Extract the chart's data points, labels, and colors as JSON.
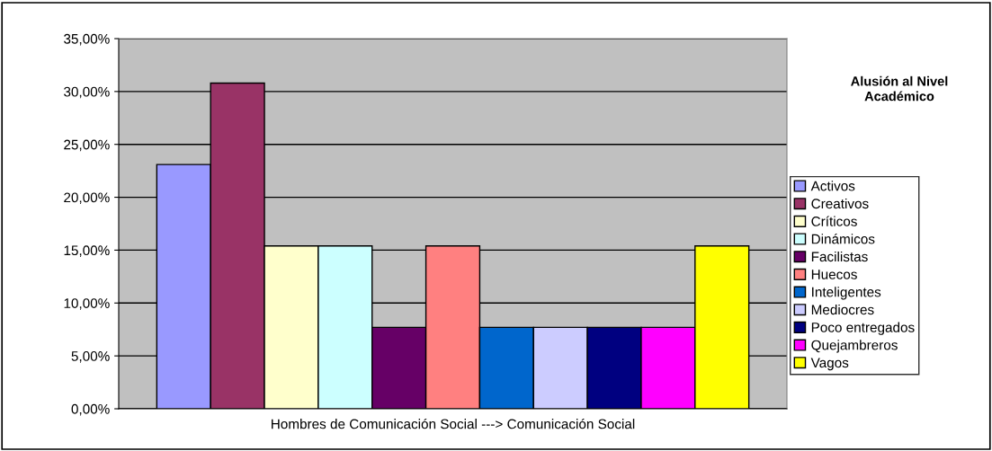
{
  "chart_data": {
    "type": "bar",
    "title": "Alusión al Nivel\nAcadémico",
    "categories": [
      "Hombres de Comunicación Social ---> Comunicación Social"
    ],
    "series": [
      {
        "name": "Activos",
        "color": "#9999ff",
        "values": [
          23.1
        ]
      },
      {
        "name": "Creativos",
        "color": "#993366",
        "values": [
          30.8
        ]
      },
      {
        "name": "Críticos",
        "color": "#ffffcc",
        "values": [
          15.4
        ]
      },
      {
        "name": "Dinámicos",
        "color": "#ccffff",
        "values": [
          15.4
        ]
      },
      {
        "name": "Facilistas",
        "color": "#660066",
        "values": [
          7.7
        ]
      },
      {
        "name": "Huecos",
        "color": "#ff8080",
        "values": [
          15.4
        ]
      },
      {
        "name": "Inteligentes",
        "color": "#0066cc",
        "values": [
          7.7
        ]
      },
      {
        "name": "Mediocres",
        "color": "#ccccff",
        "values": [
          7.7
        ]
      },
      {
        "name": "Poco entregados",
        "color": "#000080",
        "values": [
          7.7
        ]
      },
      {
        "name": "Quejambreros",
        "color": "#ff00ff",
        "values": [
          7.7
        ]
      },
      {
        "name": "Vagos",
        "color": "#ffff00",
        "values": [
          15.4
        ]
      }
    ],
    "ylim": [
      0,
      35
    ],
    "yticks": [
      {
        "value": 0,
        "label": "0,00%"
      },
      {
        "value": 5,
        "label": "5,00%"
      },
      {
        "value": 10,
        "label": "10,00%"
      },
      {
        "value": 15,
        "label": "15,00%"
      },
      {
        "value": 20,
        "label": "20,00%"
      },
      {
        "value": 25,
        "label": "25,00%"
      },
      {
        "value": 30,
        "label": "30,00%"
      },
      {
        "value": 35,
        "label": "35,00%"
      }
    ],
    "grid": "y",
    "legend": "right"
  }
}
